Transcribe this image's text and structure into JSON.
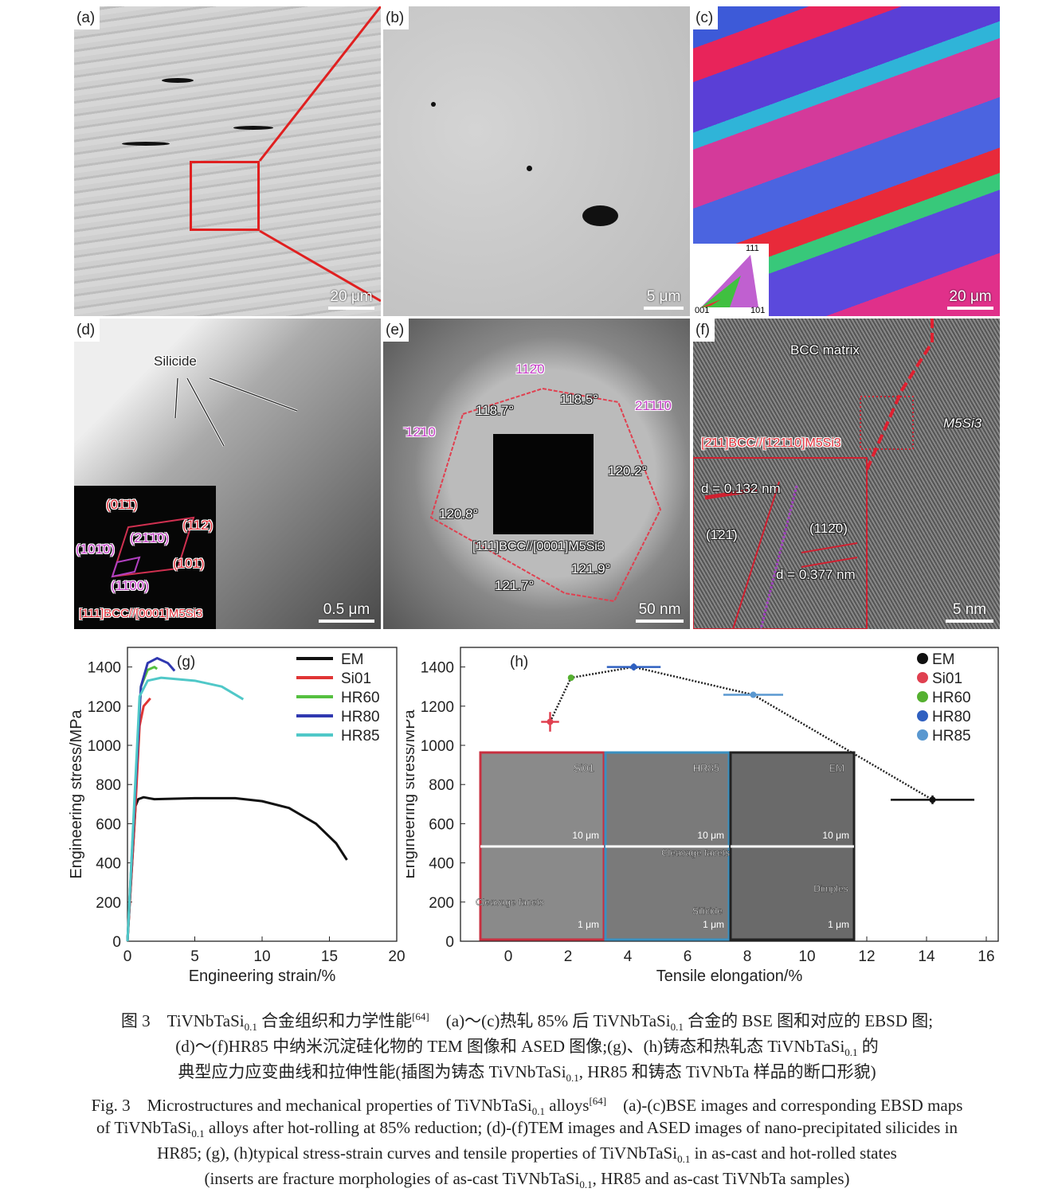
{
  "panels": {
    "a": {
      "label": "(a)",
      "scale": "20 μm"
    },
    "b": {
      "label": "(b)",
      "scale": "5 μm"
    },
    "c": {
      "label": "(c)",
      "scale": "20 μm",
      "ipf": {
        "top": "111",
        "left": "001",
        "right": "101"
      }
    },
    "d": {
      "label": "(d)",
      "scale": "0.5 μm",
      "silicide": "Silicide",
      "spots": [
        "(01̄1̄)",
        "(112̄)",
        "(21̄1̄0)",
        "(101̄0)",
        "(101̄)",
        "(11̄00)"
      ],
      "zone": "[111]BCC//[0001]M5Si3"
    },
    "e": {
      "label": "(e)",
      "scale": "50 nm",
      "planes": [
        "112̄0",
        "̄12̄10",
        "21̄11̄0"
      ],
      "angles": [
        "118.7°",
        "118.5°",
        "120.2°",
        "120.8°",
        "121.9°",
        "121.7°"
      ],
      "zone": "[111]BCC//[0001]M5Si3"
    },
    "f": {
      "label": "(f)",
      "scale": "5 nm",
      "matrix": "BCC matrix",
      "phase": "M5Si3",
      "zone": "[2̄11]BCC//[1̄21̄10]M5Si3",
      "d1": "d = 0.132 nm",
      "p1": "(1̄21̄)",
      "p2": "(112̄0)",
      "d2": "d = 0.377 nm"
    }
  },
  "chart_data": [
    {
      "type": "line",
      "panel_label": "(g)",
      "xlabel": "Engineering strain/%",
      "ylabel": "Engineering stress/MPa",
      "xlim": [
        0,
        20
      ],
      "ylim": [
        0,
        1500
      ],
      "xticks": [
        0,
        5,
        10,
        15,
        20
      ],
      "yticks": [
        0,
        200,
        400,
        600,
        800,
        1000,
        1200,
        1400
      ],
      "legend": "top-right",
      "grid": false,
      "series": [
        {
          "name": "EM",
          "color": "#111111",
          "x": [
            0,
            0.6,
            0.8,
            1.2,
            1.6,
            2,
            5,
            8,
            10,
            12,
            14,
            15.5,
            16.3
          ],
          "y": [
            0,
            690,
            725,
            735,
            730,
            725,
            730,
            730,
            715,
            680,
            600,
            500,
            415
          ]
        },
        {
          "name": "Si01",
          "color": "#e03535",
          "x": [
            0,
            0.6,
            0.9,
            1.2,
            1.7
          ],
          "y": [
            0,
            700,
            1100,
            1200,
            1240
          ]
        },
        {
          "name": "HR60",
          "color": "#55c040",
          "x": [
            0,
            0.6,
            1,
            1.5,
            2,
            2.2
          ],
          "y": [
            0,
            800,
            1300,
            1385,
            1400,
            1390
          ]
        },
        {
          "name": "HR80",
          "color": "#3038b0",
          "x": [
            0,
            0.6,
            1,
            1.5,
            2.2,
            3,
            3.5
          ],
          "y": [
            0,
            800,
            1300,
            1420,
            1445,
            1420,
            1380
          ]
        },
        {
          "name": "HR85",
          "color": "#50c8c8",
          "x": [
            0,
            0.5,
            0.9,
            1.5,
            2.5,
            5,
            7,
            8.6
          ],
          "y": [
            0,
            700,
            1250,
            1330,
            1345,
            1330,
            1300,
            1235
          ]
        }
      ]
    },
    {
      "type": "scatter",
      "panel_label": "(h)",
      "xlabel": "Tensile elongation/%",
      "ylabel": "Engineering stress/MPa",
      "xlim": [
        -1.6,
        16.4
      ],
      "ylim": [
        0,
        1500
      ],
      "xticks": [
        0,
        2,
        4,
        6,
        8,
        10,
        12,
        14,
        16
      ],
      "yticks": [
        0,
        200,
        400,
        600,
        800,
        1000,
        1200,
        1400
      ],
      "legend": "top-right",
      "grid": false,
      "connector": "dotted",
      "series": [
        {
          "name": "EM",
          "color": "#111111",
          "x": 14.2,
          "y": 722,
          "xerr": 1.4,
          "yerr": 22
        },
        {
          "name": "Si01",
          "color": "#e04050",
          "x": 1.4,
          "y": 1120,
          "xerr": 0.3,
          "yerr": 50
        },
        {
          "name": "HR60",
          "color": "#55b030",
          "x": 2.1,
          "y": 1345,
          "xerr": 0.05,
          "yerr": 15
        },
        {
          "name": "HR80",
          "color": "#2f60c0",
          "x": 4.2,
          "y": 1400,
          "xerr": 0.9,
          "yerr": 18
        },
        {
          "name": "HR85",
          "color": "#5a98d0",
          "x": 8.2,
          "y": 1258,
          "xerr": 1.0,
          "yerr": 10
        }
      ],
      "inserts": {
        "titles": [
          "Si01",
          "HR85",
          "EM"
        ],
        "scale_top": "10 μm",
        "scale_bottom": "1 μm",
        "notes": [
          "Cleavage facets",
          "Cleavage facets",
          "Silicide",
          "Dimples"
        ],
        "frame_colors": [
          "#c83040",
          "#3a90c0",
          "#222222"
        ]
      }
    }
  ],
  "caption": {
    "zh": [
      [
        [
          "t",
          "图 3　TiVNbTaSi"
        ],
        [
          "sub",
          "0.1"
        ],
        [
          "t",
          " 合金组织和力学性能"
        ],
        [
          "sup",
          "[64]"
        ],
        [
          "t",
          "　(a)～(c)热轧 85% 后 TiVNbTaSi"
        ],
        [
          "sub",
          "0.1"
        ],
        [
          "t",
          " 合金的 BSE 图和对应的 EBSD 图;"
        ]
      ],
      [
        [
          "t",
          "(d)～(f)HR85 中纳米沉淀硅化物的 TEM 图像和 ASED 图像;(g)、(h)铸态和热轧态 TiVNbTaSi"
        ],
        [
          "sub",
          "0.1"
        ],
        [
          "t",
          " 的"
        ]
      ],
      [
        [
          "t",
          "典型应力应变曲线和拉伸性能(插图为铸态 TiVNbTaSi"
        ],
        [
          "sub",
          "0.1"
        ],
        [
          "t",
          ", HR85 和铸态 TiVNbTa 样品的断口形貌)"
        ]
      ]
    ],
    "en": [
      [
        [
          "t",
          "Fig. 3　Microstructures and mechanical properties of TiVNbTaSi"
        ],
        [
          "sub",
          "0.1"
        ],
        [
          "t",
          " alloys"
        ],
        [
          "sup",
          "[64]"
        ],
        [
          "t",
          "　(a)-(c)BSE images and corresponding EBSD maps"
        ]
      ],
      [
        [
          "t",
          "of TiVNbTaSi"
        ],
        [
          "sub",
          "0.1"
        ],
        [
          "t",
          " alloys after hot-rolling at 85% reduction; (d)-(f)TEM images and ASED images of nano-precipitated silicides in"
        ]
      ],
      [
        [
          "t",
          "HR85; (g), (h)typical stress-strain curves and tensile properties of TiVNbTaSi"
        ],
        [
          "sub",
          "0.1"
        ],
        [
          "t",
          " in as-cast and hot-rolled states"
        ]
      ],
      [
        [
          "t",
          "(inserts are fracture morphologies of as-cast TiVNbTaSi"
        ],
        [
          "sub",
          "0.1"
        ],
        [
          "t",
          ", HR85 and as-cast TiVNbTa samples)"
        ]
      ]
    ]
  }
}
